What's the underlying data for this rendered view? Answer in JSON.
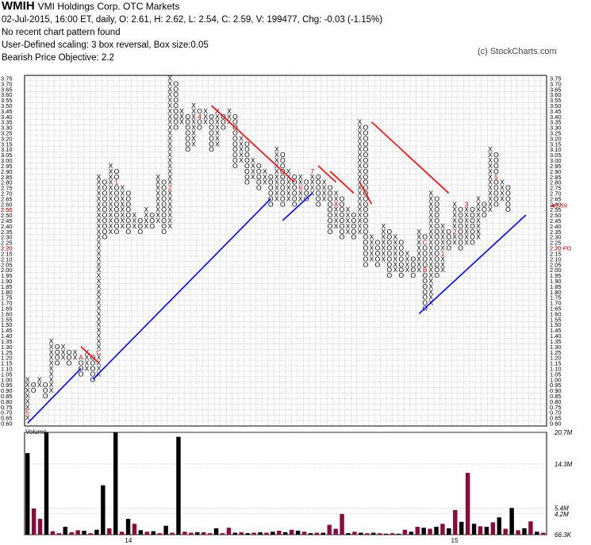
{
  "header": {
    "symbol": "WMIH",
    "name": "VMI Holdings Corp.  OTC Markets",
    "quote": "02-Jul-2015, 16:00 ET, daily, O: 2.61, H: 2.62, L: 2.54, C: 2.59, V: 199477, Chg: -0.03 (-1.15%)",
    "pattern": "No recent chart pattern found",
    "scaling": "User-Defined scaling: 3 box reversal, Box size:0.05",
    "objective": "Bearish Price Objective: 2.2",
    "copyright": "(c) StockCharts.com"
  },
  "chart_data": {
    "type": "point_and_figure",
    "box_size": 0.05,
    "reversal": 3,
    "ylim": [
      0.6,
      3.75
    ],
    "y_ticks": [
      "0.60",
      "0.65",
      "0.70",
      "0.75",
      "0.80",
      "0.85",
      "0.90",
      "0.95",
      "1.00",
      "1.05",
      "1.10",
      "1.15",
      "1.20",
      "1.25",
      "1.30",
      "1.35",
      "1.40",
      "1.45",
      "1.50",
      "1.55",
      "1.60",
      "1.65",
      "1.70",
      "1.75",
      "1.80",
      "1.85",
      "1.90",
      "1.95",
      "2.00",
      "2.05",
      "2.10",
      "2.15",
      "2.20",
      "2.25",
      "2.30",
      "2.35",
      "2.40",
      "2.45",
      "2.50",
      "2.55",
      "2.60",
      "2.65",
      "2.70",
      "2.75",
      "2.80",
      "2.85",
      "2.90",
      "2.95",
      "3.00",
      "3.05",
      "3.10",
      "3.15",
      "3.20",
      "3.25",
      "3.30",
      "3.35",
      "3.40",
      "3.45",
      "3.50",
      "3.55",
      "3.60",
      "3.65",
      "3.70",
      "3.75"
    ],
    "last_price_label": "2.59",
    "left_price_label": "2.55",
    "price_objective_label": "2.20 PO",
    "price_objective": 2.2,
    "columns": [
      {
        "t": "X",
        "lo": 0.65,
        "hi": 1.0
      },
      {
        "t": "O",
        "lo": 0.9,
        "hi": 0.95
      },
      {
        "t": "X",
        "lo": 0.95,
        "hi": 1.0
      },
      {
        "t": "O",
        "lo": 0.85,
        "hi": 0.95
      },
      {
        "t": "X",
        "lo": 0.9,
        "hi": 1.35
      },
      {
        "t": "O",
        "lo": 1.15,
        "hi": 1.3
      },
      {
        "t": "X",
        "lo": 1.2,
        "hi": 1.3
      },
      {
        "t": "O",
        "lo": 1.15,
        "hi": 1.25
      },
      {
        "t": "X",
        "lo": 1.2,
        "hi": 1.25
      },
      {
        "t": "O",
        "lo": 1.05,
        "hi": 1.2
      },
      {
        "t": "X",
        "lo": 1.1,
        "hi": 1.25
      },
      {
        "t": "O",
        "lo": 1.0,
        "hi": 1.2
      },
      {
        "t": "X",
        "lo": 1.05,
        "hi": 2.85
      },
      {
        "t": "O",
        "lo": 2.3,
        "hi": 2.8
      },
      {
        "t": "X",
        "lo": 2.35,
        "hi": 2.95
      },
      {
        "t": "O",
        "lo": 2.35,
        "hi": 2.9
      },
      {
        "t": "X",
        "lo": 2.4,
        "hi": 2.75
      },
      {
        "t": "O",
        "lo": 2.35,
        "hi": 2.7
      },
      {
        "t": "X",
        "lo": 2.4,
        "hi": 2.5
      },
      {
        "t": "O",
        "lo": 2.35,
        "hi": 2.45
      },
      {
        "t": "X",
        "lo": 2.4,
        "hi": 2.55
      },
      {
        "t": "O",
        "lo": 2.4,
        "hi": 2.5
      },
      {
        "t": "X",
        "lo": 2.45,
        "hi": 2.85
      },
      {
        "t": "O",
        "lo": 2.35,
        "hi": 2.8
      },
      {
        "t": "X",
        "lo": 2.4,
        "hi": 3.75
      },
      {
        "t": "O",
        "lo": 3.3,
        "hi": 3.7
      },
      {
        "t": "X",
        "lo": 3.35,
        "hi": 3.45
      },
      {
        "t": "O",
        "lo": 3.1,
        "hi": 3.4
      },
      {
        "t": "X",
        "lo": 3.15,
        "hi": 3.5
      },
      {
        "t": "O",
        "lo": 3.3,
        "hi": 3.45
      },
      {
        "t": "X",
        "lo": 3.35,
        "hi": 3.45
      },
      {
        "t": "O",
        "lo": 3.1,
        "hi": 3.4
      },
      {
        "t": "X",
        "lo": 3.15,
        "hi": 3.45
      },
      {
        "t": "O",
        "lo": 3.3,
        "hi": 3.4
      },
      {
        "t": "X",
        "lo": 3.35,
        "hi": 3.45
      },
      {
        "t": "O",
        "lo": 2.95,
        "hi": 3.4
      },
      {
        "t": "X",
        "lo": 3.0,
        "hi": 3.2
      },
      {
        "t": "O",
        "lo": 2.8,
        "hi": 3.15
      },
      {
        "t": "X",
        "lo": 2.85,
        "hi": 3.0
      },
      {
        "t": "O",
        "lo": 2.75,
        "hi": 2.95
      },
      {
        "t": "X",
        "lo": 2.8,
        "hi": 2.9
      },
      {
        "t": "O",
        "lo": 2.6,
        "hi": 2.85
      },
      {
        "t": "X",
        "lo": 2.65,
        "hi": 3.1
      },
      {
        "t": "O",
        "lo": 2.6,
        "hi": 3.05
      },
      {
        "t": "X",
        "lo": 2.65,
        "hi": 2.9
      },
      {
        "t": "O",
        "lo": 2.6,
        "hi": 2.85
      },
      {
        "t": "X",
        "lo": 2.65,
        "hi": 2.85
      },
      {
        "t": "O",
        "lo": 2.65,
        "hi": 2.8
      },
      {
        "t": "X",
        "lo": 2.7,
        "hi": 2.9
      },
      {
        "t": "O",
        "lo": 2.6,
        "hi": 2.85
      },
      {
        "t": "X",
        "lo": 2.65,
        "hi": 2.8
      },
      {
        "t": "O",
        "lo": 2.35,
        "hi": 2.75
      },
      {
        "t": "X",
        "lo": 2.4,
        "hi": 2.7
      },
      {
        "t": "O",
        "lo": 2.3,
        "hi": 2.65
      },
      {
        "t": "X",
        "lo": 2.35,
        "hi": 2.55
      },
      {
        "t": "O",
        "lo": 2.3,
        "hi": 2.5
      },
      {
        "t": "X",
        "lo": 2.35,
        "hi": 3.35
      },
      {
        "t": "O",
        "lo": 2.05,
        "hi": 3.3
      },
      {
        "t": "X",
        "lo": 2.1,
        "hi": 2.3
      },
      {
        "t": "O",
        "lo": 2.05,
        "hi": 2.25
      },
      {
        "t": "X",
        "lo": 2.1,
        "hi": 2.4
      },
      {
        "t": "O",
        "lo": 1.95,
        "hi": 2.35
      },
      {
        "t": "X",
        "lo": 2.0,
        "hi": 2.3
      },
      {
        "t": "O",
        "lo": 1.95,
        "hi": 2.25
      },
      {
        "t": "X",
        "lo": 2.0,
        "hi": 2.15
      },
      {
        "t": "O",
        "lo": 1.95,
        "hi": 2.1
      },
      {
        "t": "X",
        "lo": 2.0,
        "hi": 2.35
      },
      {
        "t": "O",
        "lo": 1.65,
        "hi": 2.3
      },
      {
        "t": "X",
        "lo": 1.7,
        "hi": 2.7
      },
      {
        "t": "O",
        "lo": 1.95,
        "hi": 2.65
      },
      {
        "t": "X",
        "lo": 2.0,
        "hi": 2.4
      },
      {
        "t": "O",
        "lo": 2.2,
        "hi": 2.35
      },
      {
        "t": "X",
        "lo": 2.25,
        "hi": 2.6
      },
      {
        "t": "O",
        "lo": 2.2,
        "hi": 2.55
      },
      {
        "t": "X",
        "lo": 2.25,
        "hi": 2.6
      },
      {
        "t": "O",
        "lo": 2.25,
        "hi": 2.55
      },
      {
        "t": "X",
        "lo": 2.3,
        "hi": 2.65
      },
      {
        "t": "O",
        "lo": 2.5,
        "hi": 2.6
      },
      {
        "t": "X",
        "lo": 2.55,
        "hi": 3.1
      },
      {
        "t": "O",
        "lo": 2.6,
        "hi": 3.05
      },
      {
        "t": "X",
        "lo": 2.65,
        "hi": 2.8
      },
      {
        "t": "O",
        "lo": 2.55,
        "hi": 2.75
      }
    ],
    "month_markers": [
      {
        "col": 0,
        "price": 0.7,
        "label": "5"
      },
      {
        "col": 2,
        "price": 0.75,
        "label": "6"
      },
      {
        "col": 4,
        "price": 0.75,
        "label": "7"
      },
      {
        "col": 5,
        "price": 0.9,
        "label": "8"
      },
      {
        "col": 6,
        "price": 1.15,
        "label": "9"
      },
      {
        "col": 9,
        "price": 1.2,
        "label": "A"
      },
      {
        "col": 10,
        "price": 1.0,
        "label": "B"
      },
      {
        "col": 12,
        "price": 1.25,
        "label": "C"
      },
      {
        "col": 15,
        "price": 2.8,
        "label": "1"
      },
      {
        "col": 17,
        "price": 2.95,
        "label": "2"
      },
      {
        "col": 24,
        "price": 2.75,
        "label": "2"
      },
      {
        "col": 26,
        "price": 2.85,
        "label": "3"
      },
      {
        "col": 29,
        "price": 3.4,
        "label": "4"
      },
      {
        "col": 40,
        "price": 2.75,
        "label": "5"
      },
      {
        "col": 46,
        "price": 2.75,
        "label": "6"
      },
      {
        "col": 48,
        "price": 2.9,
        "label": "7"
      },
      {
        "col": 52,
        "price": 2.6,
        "label": "8"
      },
      {
        "col": 54,
        "price": 2.6,
        "label": "9"
      },
      {
        "col": 59,
        "price": 2.65,
        "label": "A"
      },
      {
        "col": 67,
        "price": 2.0,
        "label": "B"
      },
      {
        "col": 67,
        "price": 2.25,
        "label": "C"
      },
      {
        "col": 70,
        "price": 2.15,
        "label": "1"
      },
      {
        "col": 72,
        "price": 2.35,
        "label": "2"
      },
      {
        "col": 74,
        "price": 2.6,
        "label": "3"
      },
      {
        "col": 77,
        "price": 2.4,
        "label": "4"
      },
      {
        "col": 79,
        "price": 2.85,
        "label": "5"
      },
      {
        "col": 81,
        "price": 2.85,
        "label": "6"
      },
      {
        "col": 83,
        "price": 2.6,
        "label": "7"
      }
    ],
    "resistance_lines": [
      {
        "c1": 9,
        "p1": 1.3,
        "c2": 12,
        "p2": 1.15
      },
      {
        "c1": 31,
        "p1": 3.5,
        "c2": 45,
        "p2": 2.8
      },
      {
        "c1": 49,
        "p1": 2.95,
        "c2": 52,
        "p2": 2.8
      },
      {
        "c1": 51,
        "p1": 2.9,
        "c2": 55,
        "p2": 2.7
      },
      {
        "c1": 56,
        "p1": 2.8,
        "c2": 58,
        "p2": 2.6
      },
      {
        "c1": 58,
        "p1": 3.35,
        "c2": 71,
        "p2": 2.7
      }
    ],
    "support_lines": [
      {
        "c1": 0,
        "p1": 0.6,
        "c2": 9,
        "p2": 1.1
      },
      {
        "c1": 11,
        "p1": 1.0,
        "c2": 41,
        "p2": 2.65
      },
      {
        "c1": 43,
        "p1": 2.45,
        "c2": 48,
        "p2": 2.7
      },
      {
        "c1": 66,
        "p1": 1.6,
        "c2": 84,
        "p2": 2.5
      }
    ],
    "volume": {
      "scale_labels": [
        "20.7M",
        "14.3M",
        "5.4M",
        "4.2M",
        "66.3K"
      ],
      "bars": [
        {
          "c": "k",
          "v": 16.5
        },
        {
          "c": "m",
          "v": 5.3
        },
        {
          "c": "m",
          "v": 3.2
        },
        {
          "c": "k",
          "v": 20.7
        },
        {
          "c": "m",
          "v": 0.7
        },
        {
          "c": "m",
          "v": 0.3
        },
        {
          "c": "k",
          "v": 1.6
        },
        {
          "c": "m",
          "v": 0.5
        },
        {
          "c": "m",
          "v": 0.9
        },
        {
          "c": "k",
          "v": 0.8
        },
        {
          "c": "m",
          "v": 0.3
        },
        {
          "c": "k",
          "v": 1.0
        },
        {
          "c": "k",
          "v": 10.0
        },
        {
          "c": "m",
          "v": 1.3
        },
        {
          "c": "k",
          "v": 20.7
        },
        {
          "c": "m",
          "v": 0.6
        },
        {
          "c": "k",
          "v": 3.2
        },
        {
          "c": "m",
          "v": 2.2
        },
        {
          "c": "k",
          "v": 0.9
        },
        {
          "c": "m",
          "v": 0.6
        },
        {
          "c": "k",
          "v": 0.7
        },
        {
          "c": "m",
          "v": 0.3
        },
        {
          "c": "k",
          "v": 1.8
        },
        {
          "c": "m",
          "v": 0.4
        },
        {
          "c": "k",
          "v": 19.8
        },
        {
          "c": "m",
          "v": 0.6
        },
        {
          "c": "m",
          "v": 0.4
        },
        {
          "c": "k",
          "v": 0.5
        },
        {
          "c": "m",
          "v": 0.5
        },
        {
          "c": "m",
          "v": 0.3
        },
        {
          "c": "k",
          "v": 1.3
        },
        {
          "c": "m",
          "v": 0.3
        },
        {
          "c": "m",
          "v": 1.4
        },
        {
          "c": "k",
          "v": 0.4
        },
        {
          "c": "m",
          "v": 0.5
        },
        {
          "c": "k",
          "v": 0.3
        },
        {
          "c": "m",
          "v": 0.4
        },
        {
          "c": "k",
          "v": 0.5
        },
        {
          "c": "m",
          "v": 0.4
        },
        {
          "c": "k",
          "v": 0.6
        },
        {
          "c": "m",
          "v": 0.8
        },
        {
          "c": "k",
          "v": 0.5
        },
        {
          "c": "m",
          "v": 1.0
        },
        {
          "c": "k",
          "v": 0.8
        },
        {
          "c": "m",
          "v": 0.6
        },
        {
          "c": "k",
          "v": 0.3
        },
        {
          "c": "m",
          "v": 0.4
        },
        {
          "c": "k",
          "v": 0.4
        },
        {
          "c": "m",
          "v": 2.0
        },
        {
          "c": "m",
          "v": 1.2
        },
        {
          "c": "m",
          "v": 4.2
        },
        {
          "c": "k",
          "v": 0.3
        },
        {
          "c": "m",
          "v": 0.6
        },
        {
          "c": "k",
          "v": 0.4
        },
        {
          "c": "m",
          "v": 0.3
        },
        {
          "c": "k",
          "v": 0.4
        },
        {
          "c": "m",
          "v": 0.3
        },
        {
          "c": "k",
          "v": 0.2
        },
        {
          "c": "m",
          "v": 0.3
        },
        {
          "c": "k",
          "v": 0.2
        },
        {
          "c": "m",
          "v": 1.0
        },
        {
          "c": "k",
          "v": 0.6
        },
        {
          "c": "m",
          "v": 1.6
        },
        {
          "c": "k",
          "v": 1.4
        },
        {
          "c": "m",
          "v": 1.2
        },
        {
          "c": "k",
          "v": 1.6
        },
        {
          "c": "m",
          "v": 2.2
        },
        {
          "c": "k",
          "v": 1.3
        },
        {
          "c": "m",
          "v": 5.0
        },
        {
          "c": "k",
          "v": 2.6
        },
        {
          "c": "m",
          "v": 12.5
        },
        {
          "c": "k",
          "v": 2.2
        },
        {
          "c": "m",
          "v": 1.7
        },
        {
          "c": "k",
          "v": 1.6
        },
        {
          "c": "m",
          "v": 2.5
        },
        {
          "c": "k",
          "v": 3.5
        },
        {
          "c": "m",
          "v": 1.2
        },
        {
          "c": "k",
          "v": 5.4
        },
        {
          "c": "m",
          "v": 0.9
        },
        {
          "c": "k",
          "v": 1.3
        },
        {
          "c": "m",
          "v": 2.7
        },
        {
          "c": "k",
          "v": 0.6
        },
        {
          "c": "m",
          "v": 0.4
        }
      ]
    },
    "x_labels": [
      {
        "col": 17,
        "label": "14"
      },
      {
        "col": 72,
        "label": "15"
      }
    ],
    "volume_label": "Volume",
    "colors": {
      "x": "#000000",
      "o": "#000000",
      "marker": "#cc0000",
      "resistance": "#ff0000",
      "support": "#0000ff",
      "volume_up": "#000000",
      "volume_down": "#8b0a3a",
      "grid": "#b0b0b0"
    }
  }
}
